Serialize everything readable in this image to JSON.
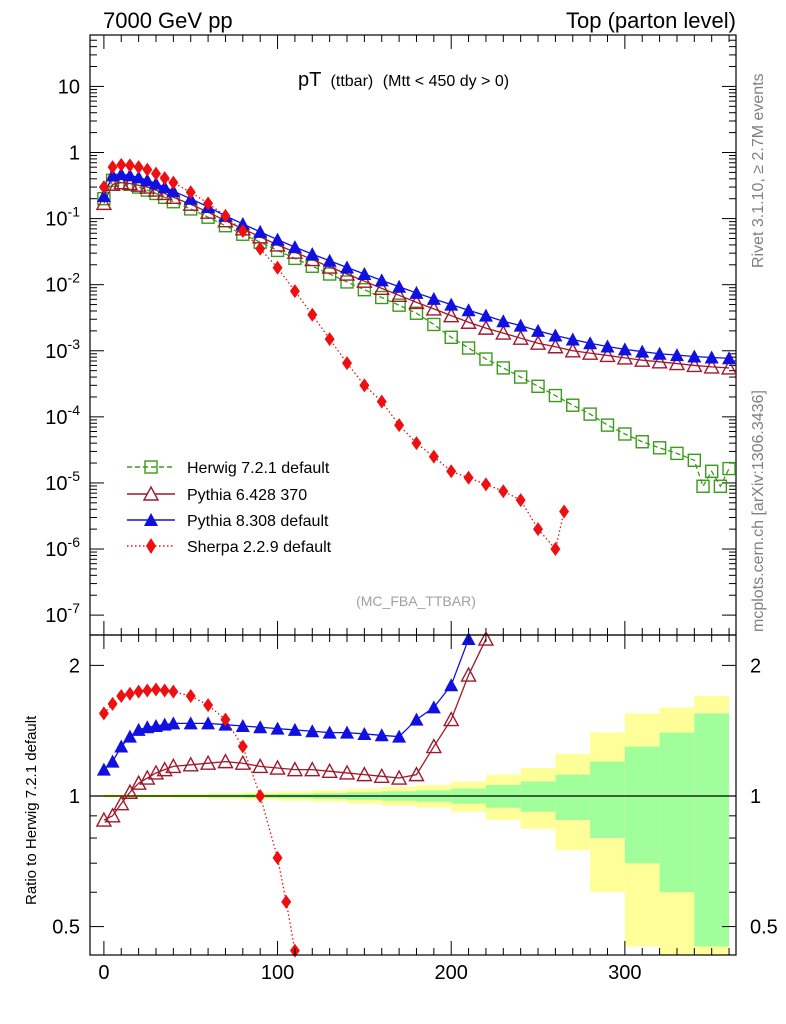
{
  "header": {
    "left": "7000 GeV pp",
    "right": "Top (parton level)"
  },
  "side_labels": {
    "rivet": "Rivet 3.1.10, ≥ 2.7M events",
    "mcplots": "mcplots.cern.ch [arXiv:1306.3436]"
  },
  "analysis_tag": "(MC_FBA_TTBAR)",
  "colors": {
    "herwig": "#3a9a1a",
    "pythia6": "#a0182c",
    "pythia8": "#1010e0",
    "sherpa": "#ee1010",
    "band_inner": "#a0ff9a",
    "band_outer": "#ffff99"
  },
  "chart_data": [
    {
      "type": "line",
      "title": "pT (ttbar) (Mtt < 450 dy > 0)",
      "title_main": "pT",
      "title_sub": "(ttbar)",
      "title_cut": "(Mtt < 450 dy > 0)",
      "xlim": [
        -8,
        364
      ],
      "ylim": [
        5e-08,
        60
      ],
      "yscale": "log",
      "y_ticks": [
        "10",
        "1",
        "10^-1",
        "10^-2",
        "10^-3",
        "10^-4",
        "10^-5",
        "10^-6",
        "10^-7"
      ],
      "legend": "bottom-left",
      "series": [
        {
          "name": "Herwig 7.2.1 default",
          "marker": "open-square",
          "line": "dashed",
          "x": [
            0,
            5,
            10,
            15,
            20,
            25,
            30,
            35,
            40,
            50,
            60,
            70,
            80,
            90,
            100,
            110,
            120,
            130,
            140,
            150,
            160,
            170,
            180,
            190,
            200,
            210,
            220,
            230,
            240,
            250,
            260,
            270,
            280,
            290,
            300,
            310,
            320,
            330,
            340,
            345,
            350,
            355,
            360
          ],
          "y": [
            0.2,
            0.38,
            0.35,
            0.33,
            0.3,
            0.27,
            0.24,
            0.21,
            0.18,
            0.14,
            0.105,
            0.078,
            0.058,
            0.044,
            0.033,
            0.025,
            0.019,
            0.0145,
            0.011,
            0.0084,
            0.0064,
            0.0049,
            0.0037,
            0.0025,
            0.0016,
            0.0011,
            0.00075,
            0.00055,
            0.0004,
            0.00029,
            0.00021,
            0.00015,
            0.00011,
            7.5e-05,
            5.5e-05,
            4.2e-05,
            3.4e-05,
            2.8e-05,
            2.2e-05,
            8.9e-06,
            1.5e-05,
            8.9e-06,
            1.65e-05
          ]
        },
        {
          "name": "Pythia 6.428 370",
          "marker": "open-triangle",
          "line": "solid",
          "x": [
            0,
            5,
            10,
            15,
            20,
            25,
            30,
            35,
            40,
            50,
            60,
            70,
            80,
            90,
            100,
            110,
            120,
            130,
            140,
            150,
            160,
            170,
            180,
            190,
            200,
            210,
            220,
            230,
            240,
            250,
            260,
            270,
            280,
            290,
            300,
            310,
            320,
            330,
            340,
            350,
            360
          ],
          "y": [
            0.17,
            0.33,
            0.35,
            0.34,
            0.32,
            0.3,
            0.27,
            0.24,
            0.21,
            0.165,
            0.125,
            0.093,
            0.07,
            0.053,
            0.04,
            0.031,
            0.024,
            0.0185,
            0.0145,
            0.0113,
            0.0088,
            0.0069,
            0.0054,
            0.0043,
            0.0034,
            0.0027,
            0.0022,
            0.00185,
            0.00155,
            0.0013,
            0.00115,
            0.001,
            0.00092,
            0.00085,
            0.00078,
            0.00072,
            0.00068,
            0.00064,
            0.0006,
            0.00057,
            0.00055
          ]
        },
        {
          "name": "Pythia 8.308 default",
          "marker": "filled-triangle",
          "line": "solid",
          "x": [
            0,
            5,
            10,
            15,
            20,
            25,
            30,
            35,
            40,
            50,
            60,
            70,
            80,
            90,
            100,
            110,
            120,
            130,
            140,
            150,
            160,
            170,
            180,
            190,
            200,
            210,
            220,
            230,
            240,
            250,
            260,
            270,
            280,
            290,
            300,
            310,
            320,
            330,
            340,
            350,
            360
          ],
          "y": [
            0.22,
            0.45,
            0.47,
            0.45,
            0.42,
            0.38,
            0.34,
            0.3,
            0.26,
            0.2,
            0.15,
            0.11,
            0.083,
            0.063,
            0.048,
            0.037,
            0.029,
            0.023,
            0.0182,
            0.0145,
            0.0116,
            0.0093,
            0.0075,
            0.0061,
            0.005,
            0.0041,
            0.0034,
            0.0028,
            0.0024,
            0.002,
            0.0017,
            0.00148,
            0.0013,
            0.00116,
            0.00105,
            0.00097,
            0.0009,
            0.00086,
            0.00082,
            0.00079,
            0.00077
          ]
        },
        {
          "name": "Sherpa 2.2.9 default",
          "marker": "filled-diamond",
          "line": "dotted",
          "x": [
            0,
            5,
            10,
            15,
            20,
            25,
            30,
            35,
            40,
            50,
            60,
            70,
            80,
            90,
            100,
            110,
            120,
            130,
            140,
            150,
            160,
            170,
            180,
            190,
            200,
            210,
            220,
            230,
            240,
            250,
            260,
            265
          ],
          "y": [
            0.3,
            0.6,
            0.65,
            0.64,
            0.6,
            0.55,
            0.48,
            0.41,
            0.35,
            0.25,
            0.17,
            0.11,
            0.065,
            0.035,
            0.018,
            0.008,
            0.0035,
            0.0015,
            0.00065,
            0.0003,
            0.00017,
            7.5e-05,
            4e-05,
            2.5e-05,
            1.5e-05,
            1.2e-05,
            9.5e-06,
            7.5e-06,
            5.5e-06,
            2e-06,
            1e-06,
            3.7e-06
          ]
        }
      ]
    },
    {
      "type": "line",
      "ylabel": "Ratio to Herwig 7.2.1 default",
      "xlim": [
        -8,
        364
      ],
      "ylim": [
        0.43,
        2.35
      ],
      "yscale": "log",
      "x_ticks": [
        "0",
        "100",
        "200",
        "300"
      ],
      "y_ticks": [
        "2",
        "1",
        "0.5"
      ],
      "series": [
        {
          "name": "Pythia 6.428 370",
          "x": [
            0,
            5,
            10,
            15,
            20,
            25,
            30,
            35,
            40,
            50,
            60,
            70,
            80,
            90,
            100,
            110,
            120,
            130,
            140,
            150,
            160,
            170,
            180,
            190,
            200,
            210,
            220
          ],
          "y": [
            0.88,
            0.9,
            0.96,
            1.02,
            1.07,
            1.1,
            1.13,
            1.15,
            1.17,
            1.18,
            1.19,
            1.2,
            1.19,
            1.17,
            1.16,
            1.15,
            1.15,
            1.14,
            1.13,
            1.12,
            1.11,
            1.1,
            1.12,
            1.3,
            1.5,
            1.9,
            2.3
          ]
        },
        {
          "name": "Pythia 8.308 default",
          "x": [
            0,
            5,
            10,
            15,
            20,
            25,
            30,
            35,
            40,
            50,
            60,
            70,
            80,
            90,
            100,
            110,
            120,
            130,
            140,
            150,
            160,
            170,
            180,
            190,
            200,
            210
          ],
          "y": [
            1.15,
            1.2,
            1.3,
            1.37,
            1.42,
            1.44,
            1.45,
            1.46,
            1.47,
            1.47,
            1.47,
            1.46,
            1.45,
            1.44,
            1.43,
            1.42,
            1.41,
            1.4,
            1.4,
            1.39,
            1.38,
            1.37,
            1.5,
            1.6,
            1.8,
            2.3
          ]
        },
        {
          "name": "Sherpa 2.2.9 default",
          "x": [
            0,
            5,
            10,
            15,
            20,
            25,
            30,
            35,
            40,
            50,
            60,
            70,
            80,
            90,
            100,
            105,
            110
          ],
          "y": [
            1.55,
            1.63,
            1.7,
            1.72,
            1.74,
            1.75,
            1.76,
            1.75,
            1.74,
            1.7,
            1.62,
            1.5,
            1.3,
            1.0,
            0.72,
            0.57,
            0.44
          ]
        }
      ],
      "bands": {
        "x_edges": [
          0,
          20,
          40,
          60,
          80,
          100,
          120,
          140,
          160,
          180,
          200,
          220,
          240,
          260,
          280,
          300,
          320,
          340,
          360
        ],
        "inner_halfwidth": [
          0.005,
          0.005,
          0.006,
          0.008,
          0.01,
          0.012,
          0.015,
          0.02,
          0.025,
          0.03,
          0.04,
          0.06,
          0.08,
          0.12,
          0.2,
          0.3,
          0.4,
          0.55,
          0.6
        ],
        "outer_halfwidth": [
          0.01,
          0.01,
          0.012,
          0.015,
          0.02,
          0.025,
          0.03,
          0.04,
          0.05,
          0.06,
          0.08,
          0.12,
          0.16,
          0.25,
          0.4,
          0.55,
          0.6,
          0.7,
          0.75
        ]
      }
    }
  ]
}
